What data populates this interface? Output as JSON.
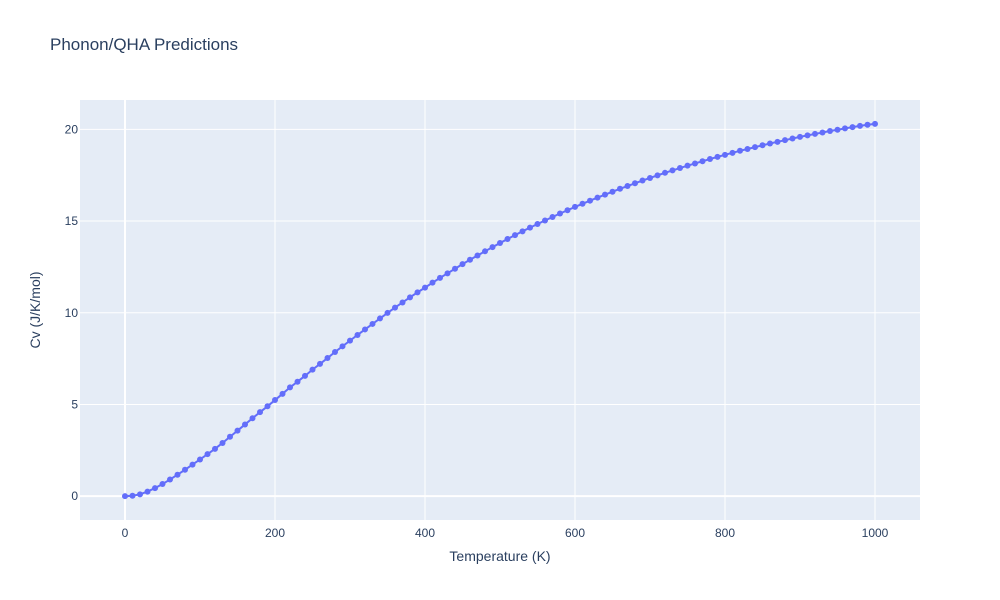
{
  "chart_data": {
    "type": "line",
    "title": "Phonon/QHA Predictions",
    "xlabel": "Temperature (K)",
    "ylabel": "Cv (J/K/mol)",
    "xlim": [
      -60,
      1060
    ],
    "ylim": [
      -1.3,
      21.6
    ],
    "xticks": [
      0,
      200,
      400,
      600,
      800,
      1000
    ],
    "yticks": [
      0,
      5,
      10,
      15,
      20
    ],
    "grid": true,
    "series": [
      {
        "color": "#636efa",
        "mode": "lines+markers",
        "x": [
          0,
          10,
          20,
          30,
          40,
          50,
          60,
          70,
          80,
          90,
          100,
          110,
          120,
          130,
          140,
          150,
          160,
          170,
          180,
          190,
          200,
          210,
          220,
          230,
          240,
          250,
          260,
          270,
          280,
          290,
          300,
          310,
          320,
          330,
          340,
          350,
          360,
          370,
          380,
          390,
          400,
          410,
          420,
          430,
          440,
          450,
          460,
          470,
          480,
          490,
          500,
          510,
          520,
          530,
          540,
          550,
          560,
          570,
          580,
          590,
          600,
          610,
          620,
          630,
          640,
          650,
          660,
          670,
          680,
          690,
          700,
          710,
          720,
          730,
          740,
          750,
          760,
          770,
          780,
          790,
          800,
          810,
          820,
          830,
          840,
          850,
          860,
          870,
          880,
          890,
          900,
          910,
          920,
          930,
          940,
          950,
          960,
          970,
          980,
          990,
          1000
        ],
        "y": [
          0.0,
          0.02,
          0.1,
          0.25,
          0.44,
          0.66,
          0.91,
          1.17,
          1.44,
          1.72,
          2.0,
          2.29,
          2.58,
          2.9,
          3.24,
          3.57,
          3.91,
          4.25,
          4.58,
          4.9,
          5.24,
          5.58,
          5.93,
          6.24,
          6.56,
          6.9,
          7.21,
          7.53,
          7.86,
          8.17,
          8.48,
          8.79,
          9.09,
          9.39,
          9.69,
          9.99,
          10.28,
          10.56,
          10.84,
          11.11,
          11.37,
          11.64,
          11.9,
          12.15,
          12.4,
          12.65,
          12.89,
          13.12,
          13.35,
          13.58,
          13.8,
          14.02,
          14.23,
          14.44,
          14.64,
          14.84,
          15.03,
          15.22,
          15.41,
          15.59,
          15.77,
          15.94,
          16.11,
          16.28,
          16.44,
          16.6,
          16.76,
          16.91,
          17.06,
          17.21,
          17.35,
          17.49,
          17.63,
          17.76,
          17.89,
          18.02,
          18.14,
          18.26,
          18.38,
          18.5,
          18.61,
          18.72,
          18.83,
          18.93,
          19.03,
          19.13,
          19.23,
          19.32,
          19.41,
          19.5,
          19.59,
          19.67,
          19.75,
          19.83,
          19.91,
          19.98,
          20.05,
          20.12,
          20.19,
          20.25,
          20.3
        ]
      }
    ]
  }
}
